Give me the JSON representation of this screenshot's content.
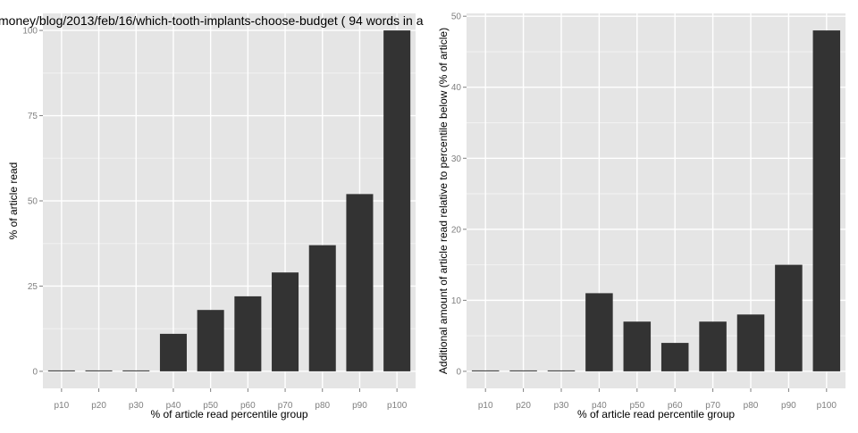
{
  "title_fragment": "money/blog/2013/feb/16/which-tooth-implants-choose-budget ( 94 words in a",
  "colors": {
    "panel": "#e5e5e5",
    "grid_major": "#ffffff",
    "grid_minor": "#f2f2f2",
    "bar": "#333333",
    "tick": "#7f7f7f"
  },
  "chart_data": [
    {
      "type": "bar",
      "categories": [
        "p10",
        "p20",
        "p30",
        "p40",
        "p50",
        "p60",
        "p70",
        "p80",
        "p90",
        "p100"
      ],
      "values": [
        0,
        0,
        0,
        11,
        18,
        22,
        29,
        37,
        52,
        100
      ],
      "xlabel": "% of article read percentile group",
      "ylabel": "% of article read",
      "ylim": [
        -5,
        105
      ],
      "yticks": [
        0,
        25,
        50,
        75,
        100
      ],
      "grid": true
    },
    {
      "type": "bar",
      "categories": [
        "p10",
        "p20",
        "p30",
        "p40",
        "p50",
        "p60",
        "p70",
        "p80",
        "p90",
        "p100"
      ],
      "values": [
        0,
        0,
        0,
        11,
        7,
        4,
        7,
        8,
        15,
        48
      ],
      "xlabel": "% of article read percentile group",
      "ylabel": "Additional amount of article read relative to percentile below (% of article)",
      "ylim": [
        -2.4,
        50.4
      ],
      "yticks": [
        0,
        10,
        20,
        30,
        40,
        50
      ],
      "grid": true
    }
  ]
}
